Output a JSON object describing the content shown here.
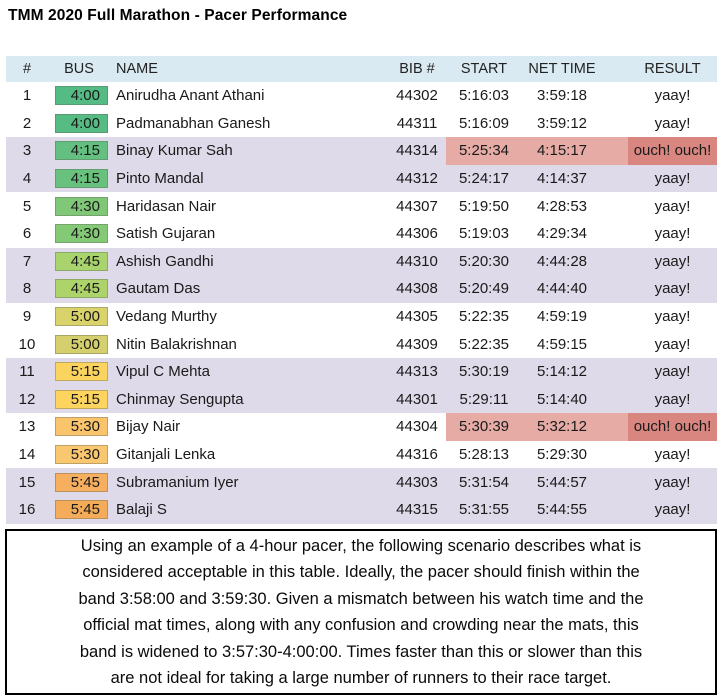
{
  "title": "TMM 2020 Full Marathon - Pacer Performance",
  "colors": {
    "header_bg": "#D9EAF2",
    "stripe_bg": "#DEDAE9",
    "plain_bg": "#FFFFFF",
    "highlight_time_bg": "#E6ABA5",
    "highlight_result_bg": "#D8867F",
    "text": "#1A1A1A",
    "note_border": "#000000"
  },
  "table": {
    "columns": [
      "#",
      "BUS",
      "NAME",
      "BIB #",
      "START",
      "NET TIME",
      "RESULT"
    ],
    "rows": [
      {
        "num": "1",
        "bus": "4:00",
        "bus_color": "#54BB85",
        "name": "Anirudha Anant Athani",
        "bib": "44302",
        "start": "5:16:03",
        "net": "3:59:18",
        "result": "yaay!",
        "shaded": false,
        "highlight": false
      },
      {
        "num": "2",
        "bus": "4:00",
        "bus_color": "#57BC83",
        "name": "Padmanabhan Ganesh",
        "bib": "44311",
        "start": "5:16:09",
        "net": "3:59:12",
        "result": "yaay!",
        "shaded": false,
        "highlight": false
      },
      {
        "num": "3",
        "bus": "4:15",
        "bus_color": "#64C080",
        "name": "Binay Kumar Sah",
        "bib": "44314",
        "start": "5:25:34",
        "net": "4:15:17",
        "result": "ouch! ouch!",
        "shaded": true,
        "highlight": true
      },
      {
        "num": "4",
        "bus": "4:15",
        "bus_color": "#68C17D",
        "name": "Pinto Mandal",
        "bib": "44312",
        "start": "5:24:17",
        "net": "4:14:37",
        "result": "yaay!",
        "shaded": true,
        "highlight": false
      },
      {
        "num": "5",
        "bus": "4:30",
        "bus_color": "#80C878",
        "name": "Haridasan Nair",
        "bib": "44307",
        "start": "5:19:50",
        "net": "4:28:53",
        "result": "yaay!",
        "shaded": false,
        "highlight": false
      },
      {
        "num": "6",
        "bus": "4:30",
        "bus_color": "#84CA76",
        "name": "Satish Gujaran",
        "bib": "44306",
        "start": "5:19:03",
        "net": "4:29:34",
        "result": "yaay!",
        "shaded": false,
        "highlight": false
      },
      {
        "num": "7",
        "bus": "4:45",
        "bus_color": "#A9D36D",
        "name": "Ashish Gandhi",
        "bib": "44310",
        "start": "5:20:30",
        "net": "4:44:28",
        "result": "yaay!",
        "shaded": true,
        "highlight": false
      },
      {
        "num": "8",
        "bus": "4:45",
        "bus_color": "#ADD46B",
        "name": "Gautam Das",
        "bib": "44308",
        "start": "5:20:49",
        "net": "4:44:40",
        "result": "yaay!",
        "shaded": true,
        "highlight": false
      },
      {
        "num": "9",
        "bus": "5:00",
        "bus_color": "#DAD26B",
        "name": "Vedang Murthy",
        "bib": "44305",
        "start": "5:22:35",
        "net": "4:59:19",
        "result": "yaay!",
        "shaded": false,
        "highlight": false
      },
      {
        "num": "10",
        "bus": "5:00",
        "bus_color": "#D6CF6E",
        "name": "Nitin Balakrishnan",
        "bib": "44309",
        "start": "5:22:35",
        "net": "4:59:15",
        "result": "yaay!",
        "shaded": false,
        "highlight": false
      },
      {
        "num": "11",
        "bus": "5:15",
        "bus_color": "#FBD45F",
        "name": "Vipul C Mehta",
        "bib": "44313",
        "start": "5:30:19",
        "net": "5:14:12",
        "result": "yaay!",
        "shaded": true,
        "highlight": false
      },
      {
        "num": "12",
        "bus": "5:15",
        "bus_color": "#FCD45E",
        "name": "Chinmay Sengupta",
        "bib": "44301",
        "start": "5:29:11",
        "net": "5:14:40",
        "result": "yaay!",
        "shaded": true,
        "highlight": false
      },
      {
        "num": "13",
        "bus": "5:30",
        "bus_color": "#FAC46D",
        "name": "Bijay Nair",
        "bib": "44304",
        "start": "5:30:39",
        "net": "5:32:12",
        "result": "ouch! ouch!",
        "shaded": false,
        "highlight": true
      },
      {
        "num": "14",
        "bus": "5:30",
        "bus_color": "#FAC771",
        "name": "Gitanjali Lenka",
        "bib": "44316",
        "start": "5:28:13",
        "net": "5:29:30",
        "result": "yaay!",
        "shaded": false,
        "highlight": false
      },
      {
        "num": "15",
        "bus": "5:45",
        "bus_color": "#F6AF5E",
        "name": "Subramanium Iyer",
        "bib": "44303",
        "start": "5:31:54",
        "net": "5:44:57",
        "result": "yaay!",
        "shaded": true,
        "highlight": false
      },
      {
        "num": "16",
        "bus": "5:45",
        "bus_color": "#F5AC5A",
        "name": "Balaji S",
        "bib": "44315",
        "start": "5:31:55",
        "net": "5:44:55",
        "result": "yaay!",
        "shaded": true,
        "highlight": false
      }
    ]
  },
  "note": {
    "lines": [
      "Using an example of a 4-hour pacer, the following scenario describes what is",
      "considered acceptable in this table. Ideally, the pacer should finish within the",
      "band 3:58:00 and 3:59:30. Given a mismatch between his watch time and the",
      "official mat times, along with any confusion and crowding near the mats, this",
      "band is widened to 3:57:30-4:00:00. Times faster than this or slower than this",
      "are not ideal for taking a large number of runners to their race target."
    ]
  }
}
